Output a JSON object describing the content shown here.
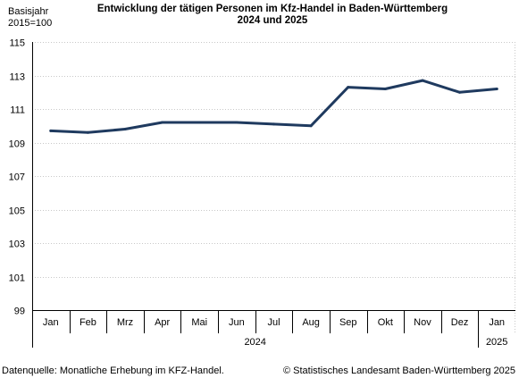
{
  "chart_data": {
    "type": "line",
    "title_line1": "Entwicklung der tätigen Personen im Kfz-Handel in Baden-Württemberg",
    "title_line2": "2024 und 2025",
    "ylabel_line1": "Basisjahr",
    "ylabel_line2": "2015=100",
    "categories": [
      "Jan",
      "Feb",
      "Mrz",
      "Apr",
      "Mai",
      "Jun",
      "Jul",
      "Aug",
      "Sep",
      "Okt",
      "Nov",
      "Dez",
      "Jan"
    ],
    "year_groups": [
      {
        "label": "2024",
        "start": 0,
        "end": 11
      },
      {
        "label": "2025",
        "start": 12,
        "end": 12
      }
    ],
    "series": [
      {
        "values": [
          109.7,
          109.6,
          109.8,
          110.2,
          110.2,
          110.2,
          110.1,
          110.0,
          112.3,
          112.2,
          112.7,
          112.0,
          112.2
        ],
        "color": "#1f3a5f"
      }
    ],
    "ylim": [
      99,
      115
    ],
    "yticks": [
      99,
      101,
      103,
      105,
      107,
      109,
      111,
      113,
      115
    ],
    "grid": true,
    "legend": "none",
    "source_note": "Datenquelle: Monatliche Erhebung im KFZ-Handel.",
    "copyright": "© Statistisches Landesamt Baden-Württemberg 2025"
  }
}
